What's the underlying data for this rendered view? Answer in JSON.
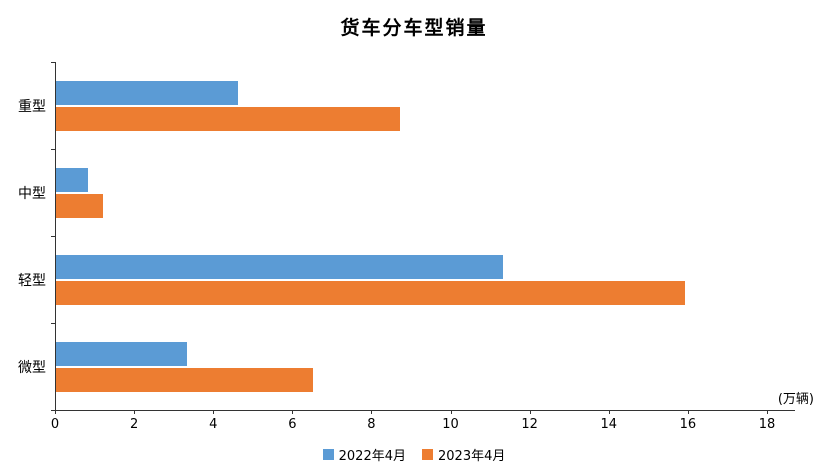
{
  "chart_data": {
    "type": "bar",
    "orientation": "horizontal",
    "title": "货车分车型销量",
    "categories": [
      "重型",
      "中型",
      "轻型",
      "微型"
    ],
    "series": [
      {
        "name": "2022年4月",
        "color": "#5B9BD5",
        "values": [
          4.6,
          0.8,
          11.3,
          3.3
        ]
      },
      {
        "name": "2023年4月",
        "color": "#ED7D31",
        "values": [
          8.7,
          1.2,
          15.9,
          6.5
        ]
      }
    ],
    "xlim": [
      0,
      18
    ],
    "xticks": [
      0,
      2,
      4,
      6,
      8,
      10,
      12,
      14,
      16,
      18
    ],
    "axis_unit_label": "(万辆)",
    "legend_position": "bottom",
    "grid": false,
    "axis_color": "#333333",
    "background_color": "#ffffff"
  }
}
